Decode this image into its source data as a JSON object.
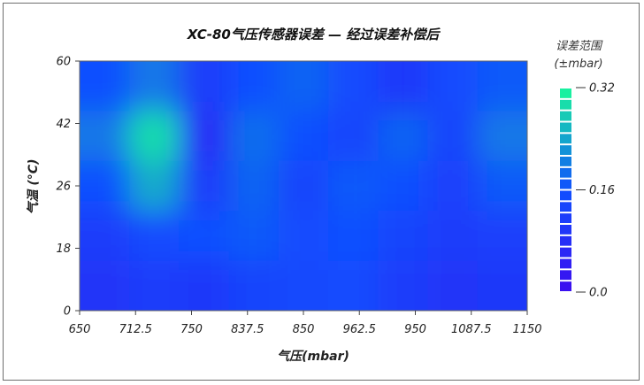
{
  "chart_data": {
    "type": "heatmap",
    "title": "XC-80气压传感器误差 — 经过误差补偿后",
    "xlabel": "气压(mbar)",
    "ylabel": "气温 (°C)",
    "x_ticks": [
      "650",
      "712.5",
      "750",
      "837.5",
      "850",
      "962.5",
      "950",
      "1087.5",
      "1150"
    ],
    "y_ticks": [
      "0",
      "18",
      "26",
      "42",
      "60"
    ],
    "colorbar": {
      "title_line1": "误差范围",
      "title_line2": "(±mbar)",
      "range": [
        0.0,
        0.32
      ],
      "tick_values": [
        0.0,
        0.16,
        0.32
      ],
      "tick_labels": [
        "0.0",
        "0.16",
        "0.32"
      ],
      "steps": 18,
      "colors": [
        "#3a10f0",
        "#0f50ff",
        "#19f0a0"
      ]
    },
    "grid": [
      [
        0.09,
        0.11,
        0.1,
        0.13,
        0.14,
        0.15,
        0.11,
        0.09,
        0.1
      ],
      [
        0.11,
        0.15,
        0.16,
        0.17,
        0.15,
        0.16,
        0.13,
        0.11,
        0.12
      ],
      [
        0.16,
        0.25,
        0.11,
        0.18,
        0.13,
        0.17,
        0.16,
        0.12,
        0.17
      ],
      [
        0.2,
        0.3,
        0.07,
        0.19,
        0.16,
        0.13,
        0.18,
        0.13,
        0.2
      ],
      [
        0.16,
        0.2,
        0.11,
        0.16,
        0.18,
        0.15,
        0.1,
        0.15,
        0.17
      ]
    ]
  }
}
